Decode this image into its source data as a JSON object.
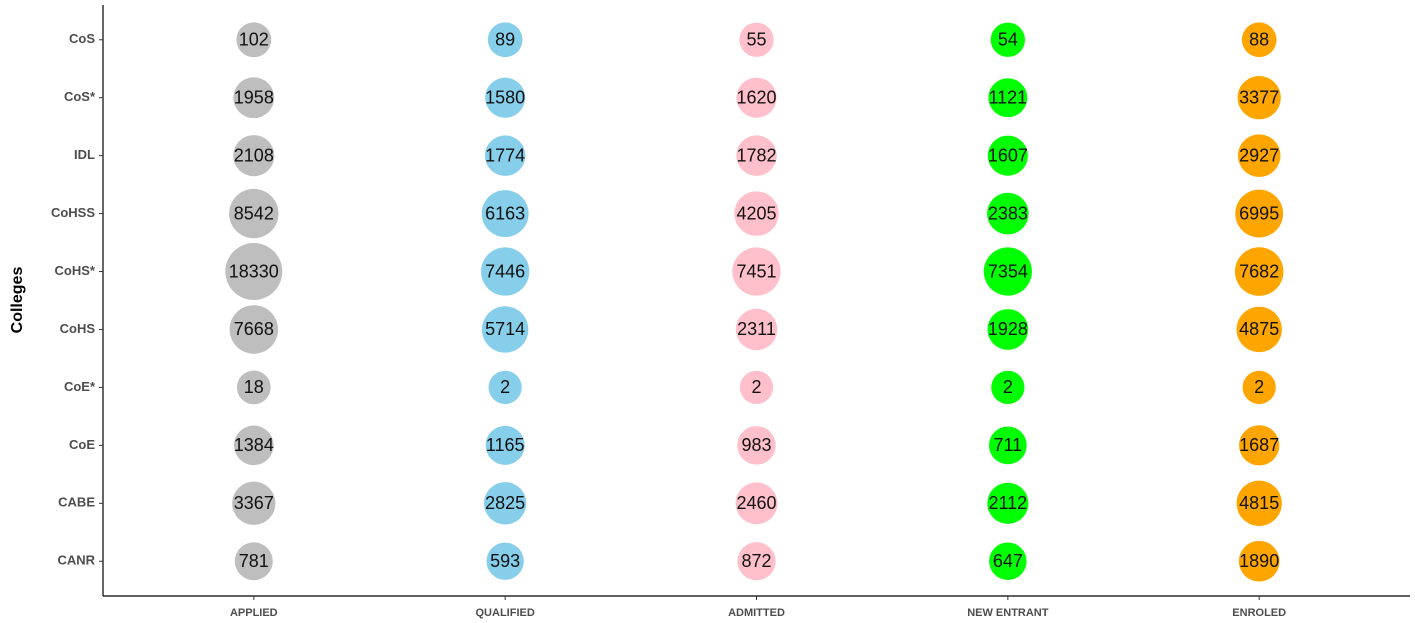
{
  "chart_data": {
    "type": "bubble",
    "y_label": "Colleges",
    "categories": [
      "CoS",
      "CoS*",
      "IDL",
      "CoHSS",
      "CoHS*",
      "CoHS",
      "CoE*",
      "CoE",
      "CABE",
      "CANR"
    ],
    "series": [
      {
        "name": "APPLIED",
        "color": "#bebebe",
        "values": [
          102,
          1958,
          2108,
          8542,
          18330,
          7668,
          18,
          1384,
          3367,
          781
        ]
      },
      {
        "name": "QUALIFIED",
        "color": "#87ceeb",
        "values": [
          89,
          1580,
          1774,
          6163,
          7446,
          5714,
          2,
          1165,
          2825,
          593
        ]
      },
      {
        "name": "ADMITTED",
        "color": "#ffc0cb",
        "values": [
          55,
          1620,
          1782,
          4205,
          7451,
          2311,
          2,
          983,
          2460,
          872
        ]
      },
      {
        "name": "NEW ENTRANT",
        "color": "#00ff00",
        "values": [
          54,
          1121,
          1607,
          2383,
          7354,
          1928,
          2,
          711,
          2112,
          647
        ]
      },
      {
        "name": "ENROLED",
        "color": "#ffa500",
        "values": [
          88,
          3377,
          2927,
          6995,
          7682,
          4875,
          2,
          1687,
          4815,
          1890
        ]
      }
    ]
  }
}
